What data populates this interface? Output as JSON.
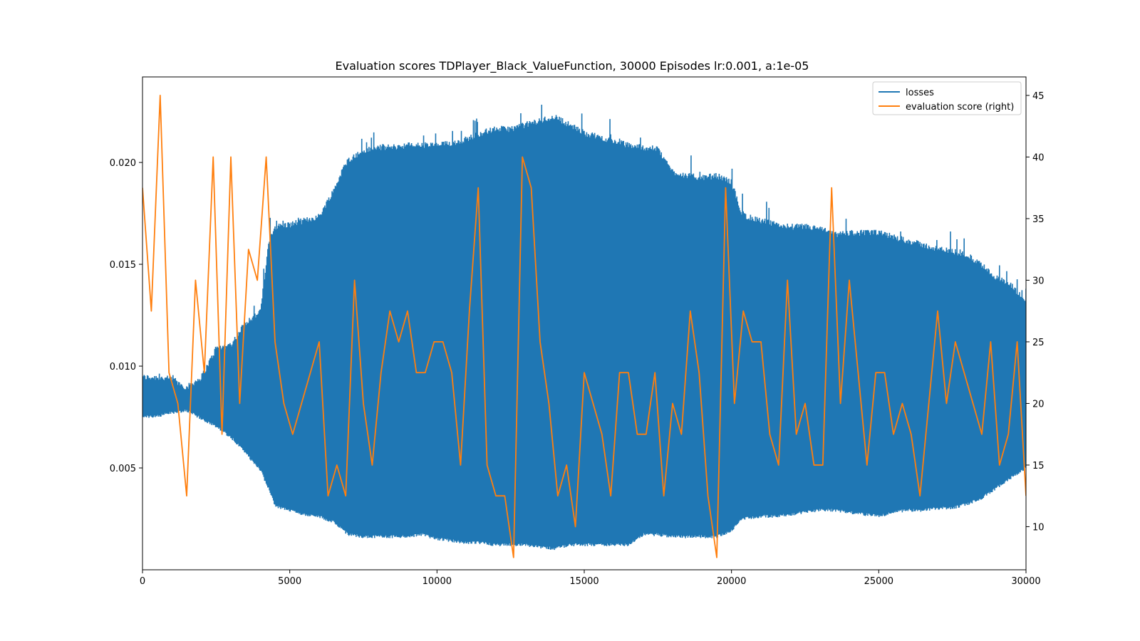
{
  "chart_data": {
    "type": "line",
    "title": "Evaluation scores TDPlayer_Black_ValueFunction, 30000 Episodes  lr:0.001, a:1e-05",
    "xlabel": "",
    "ylabel": "",
    "y2label": "",
    "xlim": [
      0,
      30000
    ],
    "ylim": [
      0.0,
      0.0242
    ],
    "y2lim": [
      6.5,
      46.5
    ],
    "xticks": [
      0,
      5000,
      10000,
      15000,
      20000,
      25000,
      30000
    ],
    "xtick_labels": [
      "0",
      "5000",
      "10000",
      "15000",
      "20000",
      "25000",
      "30000"
    ],
    "yticks": [
      0.005,
      0.01,
      0.015,
      0.02
    ],
    "ytick_labels": [
      "0.005",
      "0.010",
      "0.015",
      "0.020"
    ],
    "y2ticks": [
      10,
      15,
      20,
      25,
      30,
      35,
      40,
      45
    ],
    "y2tick_labels": [
      "10",
      "15",
      "20",
      "25",
      "30",
      "35",
      "40",
      "45"
    ],
    "grid": false,
    "legend_position": "top-right",
    "series": [
      {
        "name": "losses",
        "axis": "left",
        "color": "#1f77b4",
        "style": "oscillating-band",
        "x": [
          0,
          500,
          1000,
          1500,
          2000,
          2500,
          3000,
          3500,
          4000,
          4300,
          4500,
          5000,
          5500,
          6000,
          6500,
          6800,
          7000,
          7500,
          8000,
          8500,
          9000,
          9500,
          10000,
          10500,
          11000,
          11500,
          12000,
          12500,
          13000,
          13500,
          14000,
          14500,
          15000,
          15500,
          16000,
          16500,
          17000,
          17500,
          18000,
          18500,
          19000,
          19500,
          20000,
          20300,
          20500,
          21000,
          21500,
          22000,
          22500,
          23000,
          23500,
          24000,
          24500,
          25000,
          25500,
          26000,
          26500,
          27000,
          27500,
          28000,
          28500,
          29000,
          29500,
          30000
        ],
        "upper": [
          0.0093,
          0.0093,
          0.0092,
          0.0088,
          0.0093,
          0.0107,
          0.0109,
          0.012,
          0.0125,
          0.016,
          0.0167,
          0.0168,
          0.017,
          0.0172,
          0.0185,
          0.0195,
          0.02,
          0.0204,
          0.0206,
          0.0206,
          0.0207,
          0.0207,
          0.0207,
          0.0208,
          0.021,
          0.0213,
          0.0215,
          0.0215,
          0.0217,
          0.0219,
          0.0221,
          0.0217,
          0.0213,
          0.0211,
          0.0209,
          0.0207,
          0.0206,
          0.0205,
          0.0194,
          0.0192,
          0.0191,
          0.0192,
          0.0189,
          0.0175,
          0.0172,
          0.017,
          0.0168,
          0.0167,
          0.0167,
          0.0166,
          0.0163,
          0.0164,
          0.0164,
          0.0164,
          0.0162,
          0.016,
          0.0158,
          0.0156,
          0.0155,
          0.0153,
          0.0148,
          0.0142,
          0.0138,
          0.013
        ],
        "lower": [
          0.0076,
          0.0076,
          0.0078,
          0.0079,
          0.0075,
          0.0071,
          0.0066,
          0.0058,
          0.005,
          0.004,
          0.0032,
          0.003,
          0.0028,
          0.0027,
          0.0024,
          0.002,
          0.0018,
          0.0017,
          0.0017,
          0.0017,
          0.0017,
          0.0018,
          0.0016,
          0.0015,
          0.0014,
          0.0014,
          0.0013,
          0.0013,
          0.0013,
          0.0012,
          0.0011,
          0.0013,
          0.0013,
          0.0013,
          0.0013,
          0.0013,
          0.0018,
          0.0018,
          0.0017,
          0.0017,
          0.0017,
          0.0017,
          0.002,
          0.0025,
          0.0026,
          0.0027,
          0.0027,
          0.0028,
          0.0029,
          0.003,
          0.003,
          0.0029,
          0.0028,
          0.0027,
          0.0029,
          0.003,
          0.003,
          0.0031,
          0.0031,
          0.0033,
          0.0036,
          0.0041,
          0.0046,
          0.0051
        ]
      },
      {
        "name": "evaluation score (right)",
        "axis": "right",
        "color": "#ff7f0e",
        "x": [
          0,
          300,
          600,
          900,
          1200,
          1500,
          1800,
          2100,
          2400,
          2700,
          3000,
          3300,
          3600,
          3900,
          4200,
          4500,
          4800,
          5100,
          5400,
          5700,
          6000,
          6300,
          6600,
          6900,
          7200,
          7500,
          7800,
          8100,
          8400,
          8700,
          9000,
          9300,
          9600,
          9900,
          10200,
          10500,
          10800,
          11100,
          11400,
          11700,
          12000,
          12300,
          12600,
          12900,
          13200,
          13500,
          13800,
          14100,
          14400,
          14700,
          15000,
          15300,
          15600,
          15900,
          16200,
          16500,
          16800,
          17100,
          17400,
          17700,
          18000,
          18300,
          18600,
          18900,
          19200,
          19500,
          19800,
          20100,
          20400,
          20700,
          21000,
          21300,
          21600,
          21900,
          22200,
          22500,
          22800,
          23100,
          23400,
          23700,
          24000,
          24300,
          24600,
          24900,
          25200,
          25500,
          25800,
          26100,
          26400,
          26700,
          27000,
          27300,
          27600,
          27900,
          28200,
          28500,
          28800,
          29100,
          29400,
          29700,
          30000
        ],
        "values": [
          37.5,
          27.5,
          45,
          22.5,
          20,
          12.5,
          30,
          22.5,
          40,
          17.5,
          40,
          20,
          32.5,
          30,
          40,
          25,
          20,
          17.5,
          20,
          22.5,
          25,
          12.5,
          15,
          12.5,
          30,
          20,
          15,
          22.5,
          27.5,
          25,
          27.5,
          22.5,
          22.5,
          25,
          25,
          22.5,
          15,
          27.5,
          37.5,
          15,
          12.5,
          12.5,
          7.5,
          40,
          37.5,
          25,
          20,
          12.5,
          15,
          10,
          22.5,
          20,
          17.5,
          12.5,
          22.5,
          22.5,
          17.5,
          17.5,
          22.5,
          12.5,
          20,
          17.5,
          27.5,
          22.5,
          12.5,
          7.5,
          37.5,
          20,
          27.5,
          25,
          25,
          17.5,
          15,
          30,
          17.5,
          20,
          15,
          15,
          37.5,
          20,
          30,
          22.5,
          15,
          22.5,
          22.5,
          17.5,
          20,
          17.5,
          12.5,
          20,
          27.5,
          20,
          25,
          22.5,
          20,
          17.5,
          25,
          15,
          17.5,
          25,
          12.5
        ]
      }
    ]
  }
}
